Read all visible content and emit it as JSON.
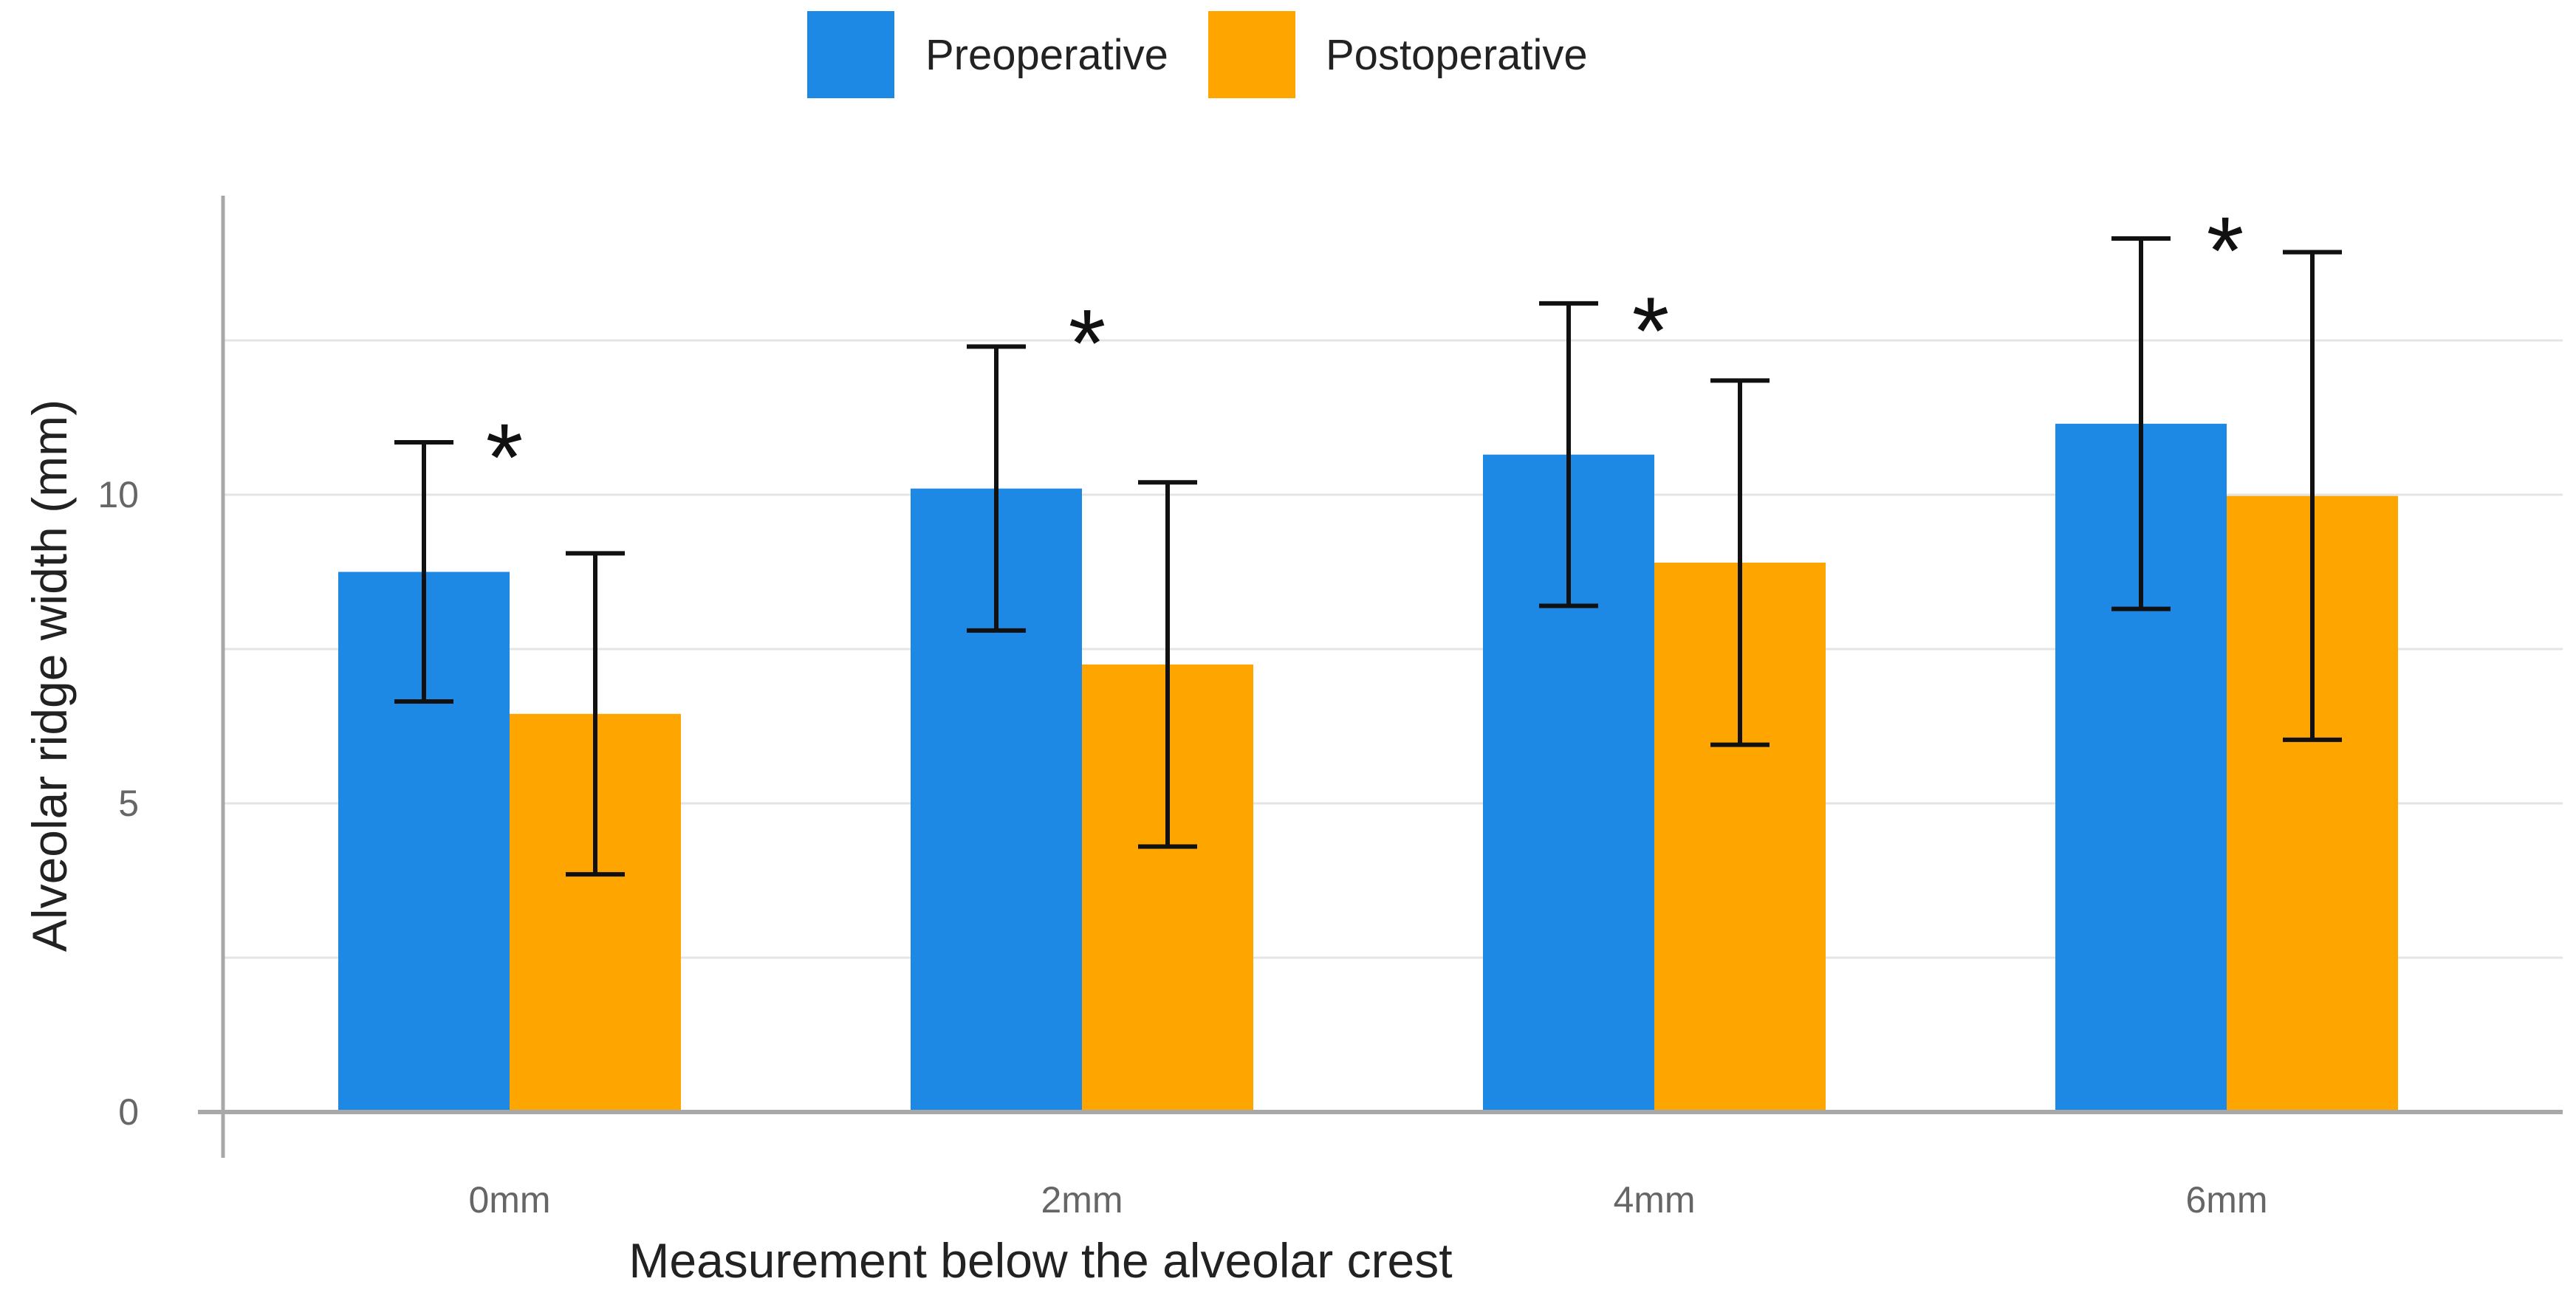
{
  "chart_data": {
    "type": "bar",
    "title": "",
    "xlabel": "Measurement below the alveolar crest",
    "ylabel": "Alveolar ridge width (mm)",
    "categories": [
      "0mm",
      "2mm",
      "4mm",
      "6mm"
    ],
    "ylim": [
      0,
      15
    ],
    "yticks": [
      0,
      5,
      10
    ],
    "y_gridlines": [
      2.5,
      5,
      7.5,
      10,
      12.5
    ],
    "legend_position": "top-center",
    "series": [
      {
        "name": "Preoperative",
        "color": "#1e88e5",
        "values": [
          8.75,
          10.1,
          10.65,
          11.15
        ],
        "error": [
          2.1,
          2.3,
          2.45,
          3.0
        ]
      },
      {
        "name": "Postoperative",
        "color": "#ffa500",
        "values": [
          6.45,
          7.25,
          8.9,
          9.98
        ],
        "error": [
          2.6,
          2.95,
          2.95,
          3.95
        ]
      }
    ],
    "annotations": [
      {
        "category": "0mm",
        "text": "*",
        "y": 11.05
      },
      {
        "category": "2mm",
        "text": "*",
        "y": 12.9
      },
      {
        "category": "4mm",
        "text": "*",
        "y": 13.1
      },
      {
        "category": "6mm",
        "text": "*",
        "y": 14.4
      }
    ]
  }
}
